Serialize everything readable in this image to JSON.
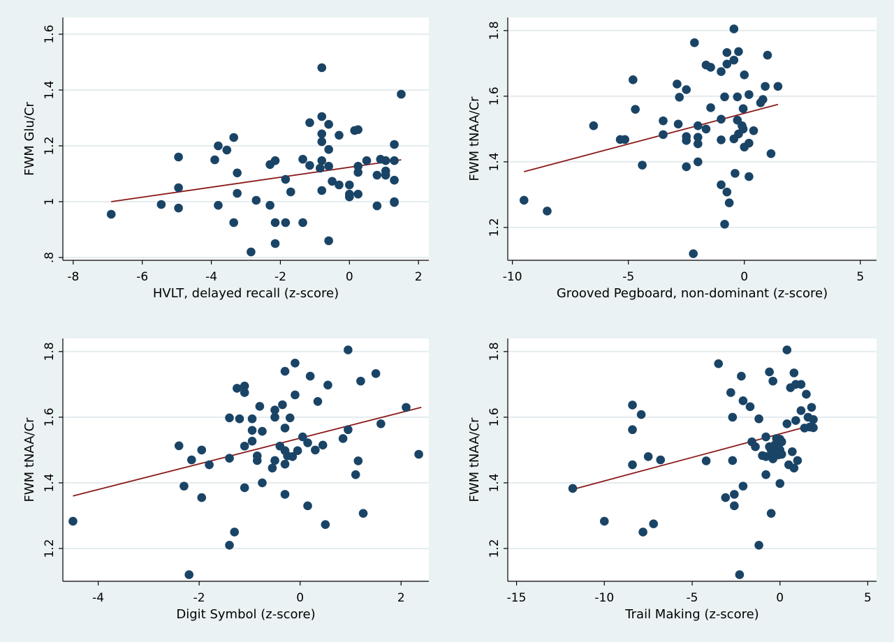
{
  "chart_data": [
    {
      "type": "scatter",
      "xlabel": "HVLT, delayed recall (z-score)",
      "ylabel": "FWM Glu/Cr",
      "xlim": [
        -8.3,
        2.3
      ],
      "ylim": [
        0.79,
        1.66
      ],
      "xticks": [
        -8,
        -6,
        -4,
        -2,
        0,
        2
      ],
      "xtick_labels": [
        "-8",
        "-6",
        "-4",
        "-2",
        "0",
        "2"
      ],
      "yticks": [
        0.8,
        1.0,
        1.2,
        1.4,
        1.6
      ],
      "ytick_labels": [
        ".8",
        "1",
        "1.2",
        "1.4",
        "1.6"
      ],
      "grid": true,
      "marker_color": "#1a4466",
      "line_color": "#8b1a1a",
      "fit_line": [
        [
          -6.9,
          1.0
        ],
        [
          1.5,
          1.15
        ]
      ],
      "points": [
        [
          -6.9,
          0.955
        ],
        [
          -5.45,
          0.99
        ],
        [
          -4.95,
          1.16
        ],
        [
          -4.95,
          1.05
        ],
        [
          -4.95,
          0.977
        ],
        [
          -3.9,
          1.15
        ],
        [
          -3.8,
          1.2
        ],
        [
          -3.8,
          0.987
        ],
        [
          -3.55,
          1.185
        ],
        [
          -3.35,
          1.23
        ],
        [
          -3.35,
          0.925
        ],
        [
          -3.25,
          1.103
        ],
        [
          -3.25,
          1.03
        ],
        [
          -2.85,
          0.82
        ],
        [
          -2.7,
          1.005
        ],
        [
          -2.3,
          1.133
        ],
        [
          -2.3,
          0.987
        ],
        [
          -2.15,
          1.147
        ],
        [
          -2.15,
          0.925
        ],
        [
          -2.15,
          0.85
        ],
        [
          -1.85,
          1.08
        ],
        [
          -1.85,
          0.925
        ],
        [
          -1.7,
          1.035
        ],
        [
          -1.35,
          1.152
        ],
        [
          -1.35,
          0.925
        ],
        [
          -1.15,
          1.283
        ],
        [
          -1.15,
          1.13
        ],
        [
          -0.85,
          1.12
        ],
        [
          -0.8,
          1.48
        ],
        [
          -0.8,
          1.305
        ],
        [
          -0.8,
          1.243
        ],
        [
          -0.8,
          1.215
        ],
        [
          -0.8,
          1.147
        ],
        [
          -0.8,
          1.04
        ],
        [
          -0.6,
          1.277
        ],
        [
          -0.6,
          1.187
        ],
        [
          -0.6,
          1.127
        ],
        [
          -0.6,
          0.86
        ],
        [
          -0.5,
          1.073
        ],
        [
          -0.3,
          1.238
        ],
        [
          -0.3,
          1.06
        ],
        [
          0.0,
          1.06
        ],
        [
          0.0,
          1.027
        ],
        [
          0.0,
          1.017
        ],
        [
          0.15,
          1.255
        ],
        [
          0.25,
          1.258
        ],
        [
          0.25,
          1.127
        ],
        [
          0.25,
          1.105
        ],
        [
          0.25,
          1.027
        ],
        [
          0.5,
          1.147
        ],
        [
          0.8,
          1.095
        ],
        [
          0.8,
          0.985
        ],
        [
          0.9,
          1.152
        ],
        [
          1.05,
          1.147
        ],
        [
          1.05,
          1.11
        ],
        [
          1.05,
          1.095
        ],
        [
          1.3,
          1.205
        ],
        [
          1.3,
          1.147
        ],
        [
          1.3,
          1.077
        ],
        [
          1.3,
          1.0
        ],
        [
          1.3,
          0.997
        ],
        [
          1.5,
          1.385
        ]
      ]
    },
    {
      "type": "scatter",
      "xlabel": "Grooved Pegboard, non-dominant (z-score)",
      "ylabel": "FWM tNAA/Cr",
      "xlim": [
        -10.2,
        5.7
      ],
      "ylim": [
        1.1,
        1.84
      ],
      "xticks": [
        -10,
        -5,
        0,
        5
      ],
      "xtick_labels": [
        "-10",
        "-5",
        "0",
        "5"
      ],
      "yticks": [
        1.2,
        1.4,
        1.6,
        1.8
      ],
      "ytick_labels": [
        "1.2",
        "1.4",
        "1.6",
        "1.8"
      ],
      "grid": true,
      "marker_color": "#1a4466",
      "line_color": "#8b1a1a",
      "fit_line": [
        [
          -9.5,
          1.37
        ],
        [
          1.45,
          1.575
        ]
      ],
      "points": [
        [
          -9.5,
          1.283
        ],
        [
          -8.5,
          1.25
        ],
        [
          -6.5,
          1.51
        ],
        [
          -5.35,
          1.468
        ],
        [
          -5.15,
          1.468
        ],
        [
          -4.8,
          1.65
        ],
        [
          -4.7,
          1.56
        ],
        [
          -4.4,
          1.39
        ],
        [
          -3.5,
          1.525
        ],
        [
          -3.5,
          1.483
        ],
        [
          -2.9,
          1.637
        ],
        [
          -2.85,
          1.515
        ],
        [
          -2.8,
          1.597
        ],
        [
          -2.5,
          1.62
        ],
        [
          -2.5,
          1.477
        ],
        [
          -2.5,
          1.385
        ],
        [
          -2.5,
          1.465
        ],
        [
          -2.15,
          1.763
        ],
        [
          -2.2,
          1.12
        ],
        [
          -2.0,
          1.51
        ],
        [
          -2.0,
          1.475
        ],
        [
          -2.0,
          1.455
        ],
        [
          -2.0,
          1.4
        ],
        [
          -1.65,
          1.695
        ],
        [
          -1.65,
          1.5
        ],
        [
          -1.45,
          1.688
        ],
        [
          -1.45,
          1.565
        ],
        [
          -1.0,
          1.675
        ],
        [
          -1.0,
          1.53
        ],
        [
          -1.0,
          1.467
        ],
        [
          -1.0,
          1.33
        ],
        [
          -0.85,
          1.598
        ],
        [
          -0.85,
          1.21
        ],
        [
          -0.75,
          1.733
        ],
        [
          -0.75,
          1.698
        ],
        [
          -0.75,
          1.308
        ],
        [
          -0.65,
          1.275
        ],
        [
          -0.45,
          1.805
        ],
        [
          -0.45,
          1.71
        ],
        [
          -0.45,
          1.47
        ],
        [
          -0.4,
          1.365
        ],
        [
          -0.3,
          1.598
        ],
        [
          -0.3,
          1.527
        ],
        [
          -0.25,
          1.736
        ],
        [
          -0.25,
          1.485
        ],
        [
          -0.1,
          1.51
        ],
        [
          -0.05,
          1.562
        ],
        [
          0.0,
          1.665
        ],
        [
          -0.05,
          1.5
        ],
        [
          0.0,
          1.445
        ],
        [
          0.2,
          1.605
        ],
        [
          0.2,
          1.457
        ],
        [
          0.2,
          1.355
        ],
        [
          0.4,
          1.495
        ],
        [
          0.7,
          1.58
        ],
        [
          0.8,
          1.59
        ],
        [
          0.9,
          1.63
        ],
        [
          1.0,
          1.725
        ],
        [
          1.15,
          1.425
        ],
        [
          1.45,
          1.63
        ]
      ]
    },
    {
      "type": "scatter",
      "xlabel": "Digit Symbol (z-score)",
      "ylabel": "FWM tNAA/Cr",
      "xlim": [
        -4.7,
        2.55
      ],
      "ylim": [
        1.1,
        1.84
      ],
      "xticks": [
        -4,
        -2,
        0,
        2
      ],
      "xtick_labels": [
        "-4",
        "-2",
        "0",
        "2"
      ],
      "yticks": [
        1.2,
        1.4,
        1.6,
        1.8
      ],
      "ytick_labels": [
        "1.2",
        "1.4",
        "1.6",
        "1.8"
      ],
      "grid": true,
      "marker_color": "#1a4466",
      "line_color": "#8b1a1a",
      "fit_line": [
        [
          -4.5,
          1.36
        ],
        [
          2.4,
          1.63
        ]
      ],
      "points": [
        [
          -4.5,
          1.283
        ],
        [
          -2.4,
          1.513
        ],
        [
          -2.3,
          1.39
        ],
        [
          -2.2,
          1.12
        ],
        [
          -2.15,
          1.47
        ],
        [
          -1.95,
          1.5
        ],
        [
          -1.95,
          1.355
        ],
        [
          -1.8,
          1.455
        ],
        [
          -1.4,
          1.598
        ],
        [
          -1.4,
          1.475
        ],
        [
          -1.4,
          1.21
        ],
        [
          -1.3,
          1.25
        ],
        [
          -1.25,
          1.688
        ],
        [
          -1.2,
          1.595
        ],
        [
          -1.1,
          1.695
        ],
        [
          -1.1,
          1.675
        ],
        [
          -1.1,
          1.512
        ],
        [
          -1.1,
          1.385
        ],
        [
          -0.95,
          1.595
        ],
        [
          -0.95,
          1.56
        ],
        [
          -0.95,
          1.527
        ],
        [
          -0.85,
          1.468
        ],
        [
          -0.85,
          1.482
        ],
        [
          -0.8,
          1.633
        ],
        [
          -0.75,
          1.557
        ],
        [
          -0.75,
          1.4
        ],
        [
          -0.55,
          1.445
        ],
        [
          -0.5,
          1.6
        ],
        [
          -0.5,
          1.622
        ],
        [
          -0.5,
          1.468
        ],
        [
          -0.4,
          1.512
        ],
        [
          -0.35,
          1.638
        ],
        [
          -0.3,
          1.74
        ],
        [
          -0.3,
          1.365
        ],
        [
          -0.3,
          1.567
        ],
        [
          -0.3,
          1.498
        ],
        [
          -0.3,
          1.457
        ],
        [
          -0.25,
          1.482
        ],
        [
          -0.2,
          1.598
        ],
        [
          -0.15,
          1.48
        ],
        [
          -0.1,
          1.765
        ],
        [
          -0.1,
          1.668
        ],
        [
          -0.05,
          1.498
        ],
        [
          0.05,
          1.54
        ],
        [
          0.15,
          1.522
        ],
        [
          0.15,
          1.33
        ],
        [
          0.2,
          1.725
        ],
        [
          0.3,
          1.5
        ],
        [
          0.35,
          1.648
        ],
        [
          0.45,
          1.515
        ],
        [
          0.5,
          1.273
        ],
        [
          0.55,
          1.698
        ],
        [
          0.85,
          1.535
        ],
        [
          0.95,
          1.805
        ],
        [
          0.95,
          1.562
        ],
        [
          1.1,
          1.425
        ],
        [
          1.15,
          1.467
        ],
        [
          1.2,
          1.71
        ],
        [
          1.25,
          1.307
        ],
        [
          1.5,
          1.733
        ],
        [
          1.6,
          1.58
        ],
        [
          2.1,
          1.63
        ],
        [
          2.35,
          1.487
        ]
      ]
    },
    {
      "type": "scatter",
      "xlabel": "Trail Making (z-score)",
      "ylabel": "FWM tNAA/Cr",
      "xlim": [
        -15.5,
        5.5
      ],
      "ylim": [
        1.1,
        1.84
      ],
      "xticks": [
        -15,
        -10,
        -5,
        0,
        5
      ],
      "xtick_labels": [
        "-15",
        "-10",
        "-5",
        "0",
        "5"
      ],
      "yticks": [
        1.2,
        1.4,
        1.6,
        1.8
      ],
      "ytick_labels": [
        "1.2",
        "1.4",
        "1.6",
        "1.8"
      ],
      "grid": true,
      "marker_color": "#1a4466",
      "line_color": "#8b1a1a",
      "fit_line": [
        [
          -11.8,
          1.38
        ],
        [
          1.8,
          1.575
        ]
      ],
      "points": [
        [
          -11.8,
          1.383
        ],
        [
          -10.0,
          1.283
        ],
        [
          -8.4,
          1.637
        ],
        [
          -8.4,
          1.562
        ],
        [
          -8.4,
          1.455
        ],
        [
          -7.9,
          1.608
        ],
        [
          -7.8,
          1.25
        ],
        [
          -7.5,
          1.48
        ],
        [
          -7.2,
          1.275
        ],
        [
          -6.8,
          1.47
        ],
        [
          -4.2,
          1.467
        ],
        [
          -3.5,
          1.763
        ],
        [
          -3.1,
          1.355
        ],
        [
          -2.8,
          1.675
        ],
        [
          -2.7,
          1.6
        ],
        [
          -2.7,
          1.468
        ],
        [
          -2.6,
          1.33
        ],
        [
          -2.6,
          1.365
        ],
        [
          -2.3,
          1.12
        ],
        [
          -2.2,
          1.725
        ],
        [
          -2.1,
          1.65
        ],
        [
          -2.1,
          1.39
        ],
        [
          -1.7,
          1.632
        ],
        [
          -1.6,
          1.525
        ],
        [
          -1.4,
          1.51
        ],
        [
          -1.2,
          1.595
        ],
        [
          -1.2,
          1.21
        ],
        [
          -1.0,
          1.483
        ],
        [
          -0.8,
          1.54
        ],
        [
          -0.8,
          1.425
        ],
        [
          -0.8,
          1.48
        ],
        [
          -0.6,
          1.738
        ],
        [
          -0.6,
          1.51
        ],
        [
          -0.5,
          1.307
        ],
        [
          -0.5,
          1.5
        ],
        [
          -0.4,
          1.71
        ],
        [
          -0.4,
          1.48
        ],
        [
          -0.4,
          1.473
        ],
        [
          -0.3,
          1.515
        ],
        [
          -0.2,
          1.535
        ],
        [
          -0.2,
          1.498
        ],
        [
          -0.1,
          1.51
        ],
        [
          -0.1,
          1.485
        ],
        [
          0.0,
          1.398
        ],
        [
          0.0,
          1.5
        ],
        [
          0.0,
          1.533
        ],
        [
          0.1,
          1.525
        ],
        [
          0.1,
          1.487
        ],
        [
          0.4,
          1.805
        ],
        [
          0.4,
          1.58
        ],
        [
          0.5,
          1.455
        ],
        [
          0.6,
          1.69
        ],
        [
          0.7,
          1.495
        ],
        [
          0.8,
          1.735
        ],
        [
          0.8,
          1.445
        ],
        [
          0.9,
          1.7
        ],
        [
          0.9,
          1.59
        ],
        [
          1.0,
          1.468
        ],
        [
          1.2,
          1.7
        ],
        [
          1.2,
          1.62
        ],
        [
          1.4,
          1.567
        ],
        [
          1.5,
          1.67
        ],
        [
          1.6,
          1.6
        ],
        [
          1.7,
          1.57
        ],
        [
          1.8,
          1.63
        ],
        [
          1.9,
          1.593
        ],
        [
          1.9,
          1.568
        ]
      ]
    }
  ]
}
